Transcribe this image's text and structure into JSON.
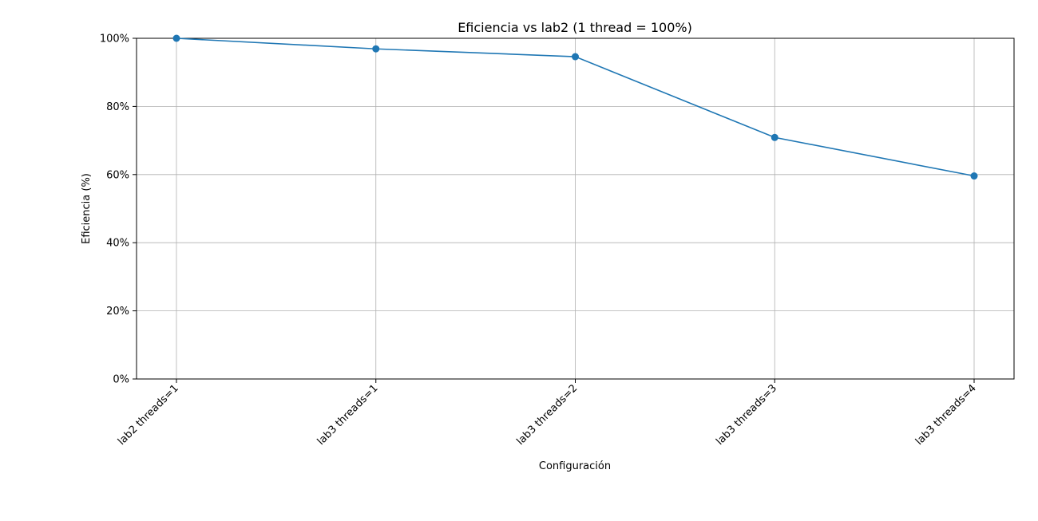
{
  "chart_data": {
    "type": "line",
    "title": "Eficiencia vs lab2 (1 thread = 100%)",
    "xlabel": "Configuración",
    "ylabel": "Eficiencia (%)",
    "categories": [
      "lab2 threads=1",
      "lab3 threads=1",
      "lab3 threads=2",
      "lab3 threads=3",
      "lab3 threads=4"
    ],
    "series": [
      {
        "values": [
          100,
          96.9,
          94.6,
          70.9,
          59.6
        ]
      }
    ],
    "ylim": [
      0,
      100
    ],
    "yticks": [
      0,
      20,
      40,
      60,
      80,
      100
    ],
    "ytick_labels": [
      "0%",
      "20%",
      "40%",
      "60%",
      "80%",
      "100%"
    ],
    "grid": true,
    "line_color": "#1f77b4"
  }
}
